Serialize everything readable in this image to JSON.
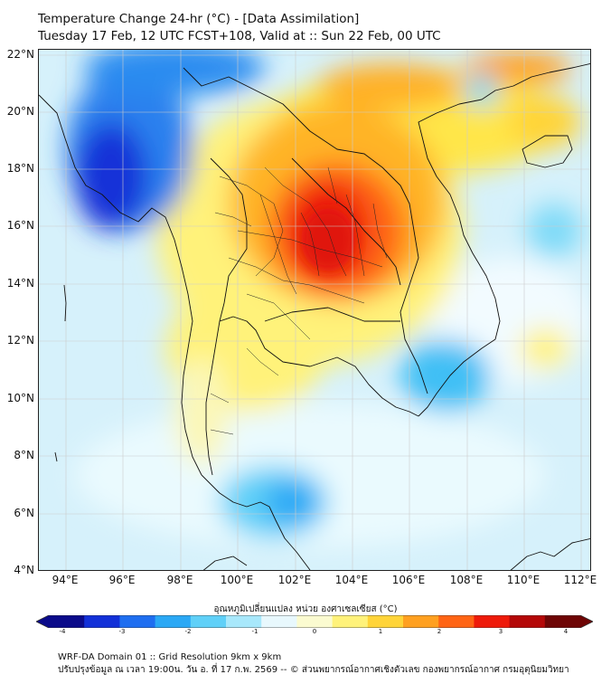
{
  "title": {
    "line1": "Temperature Change 24-hr (°C) - [Data Assimilation]",
    "line2": "Tuesday 17 Feb, 12 UTC FCST+108, Valid at :: Sun 22 Feb, 00 UTC"
  },
  "map": {
    "variable": "24-hr temperature change",
    "units": "°C",
    "lat_labels": [
      "22°N",
      "20°N",
      "18°N",
      "16°N",
      "14°N",
      "12°N",
      "10°N",
      "8°N",
      "6°N",
      "4°N"
    ],
    "lon_labels": [
      "94°E",
      "96°E",
      "98°E",
      "100°E",
      "102°E",
      "104°E",
      "106°E",
      "108°E",
      "110°E",
      "112°E"
    ],
    "lat_range": [
      4,
      22.3
    ],
    "lon_range": [
      93,
      112.4
    ]
  },
  "colorbar": {
    "title": "อุณหภูมิเปลี่ยนแปลง หน่วย องศาเซลเซียส (°C)",
    "ticks": [
      "-4",
      "-3",
      "-2",
      "-1",
      "0",
      "1",
      "2",
      "3",
      "4"
    ],
    "range": [
      -4,
      4
    ],
    "colors": [
      "#0b0b8a",
      "#1230d8",
      "#1e6ef0",
      "#2aa8f5",
      "#5fd0f8",
      "#a8e8fb",
      "#e8f8fd",
      "#fbfbd0",
      "#fff27a",
      "#ffd438",
      "#ffa020",
      "#ff6414",
      "#ee1a0a",
      "#b40808",
      "#6e0505"
    ]
  },
  "footer": {
    "line1": "WRF-DA Domain 01 :: Grid Resolution 9km x 9km",
    "line2": "ปรับปรุงข้อมูล ณ เวลา 19:00น. วัน อ. ที่ 17 ก.พ. 2569 -- © ส่วนพยากรณ์อากาศเชิงตัวเลข กองพยากรณ์อากาศ กรมอุตุนิยมวิทยา"
  }
}
